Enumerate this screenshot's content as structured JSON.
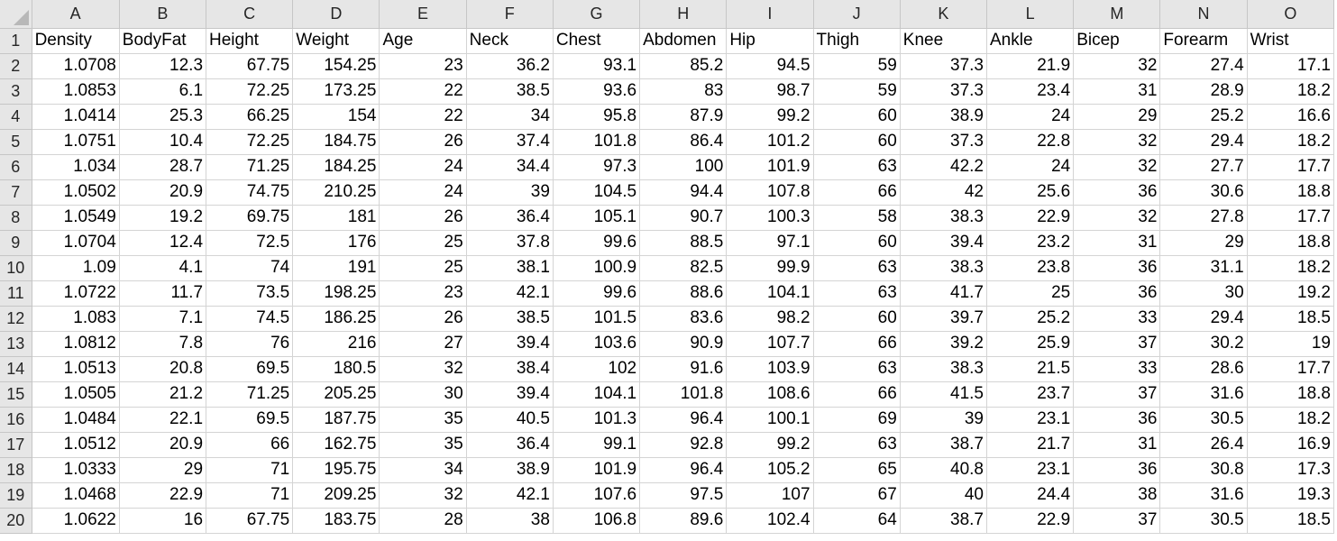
{
  "spreadsheet": {
    "columns": [
      "A",
      "B",
      "C",
      "D",
      "E",
      "F",
      "G",
      "H",
      "I",
      "J",
      "K",
      "L",
      "M",
      "N",
      "O"
    ],
    "headers": [
      "Density",
      "BodyFat",
      "Height",
      "Weight",
      "Age",
      "Neck",
      "Chest",
      "Abdomen",
      "Hip",
      "Thigh",
      "Knee",
      "Ankle",
      "Bicep",
      "Forearm",
      "Wrist"
    ],
    "rows": [
      {
        "n": "2",
        "cells": [
          "1.0708",
          "12.3",
          "67.75",
          "154.25",
          "23",
          "36.2",
          "93.1",
          "85.2",
          "94.5",
          "59",
          "37.3",
          "21.9",
          "32",
          "27.4",
          "17.1"
        ]
      },
      {
        "n": "3",
        "cells": [
          "1.0853",
          "6.1",
          "72.25",
          "173.25",
          "22",
          "38.5",
          "93.6",
          "83",
          "98.7",
          "59",
          "37.3",
          "23.4",
          "31",
          "28.9",
          "18.2"
        ]
      },
      {
        "n": "4",
        "cells": [
          "1.0414",
          "25.3",
          "66.25",
          "154",
          "22",
          "34",
          "95.8",
          "87.9",
          "99.2",
          "60",
          "38.9",
          "24",
          "29",
          "25.2",
          "16.6"
        ]
      },
      {
        "n": "5",
        "cells": [
          "1.0751",
          "10.4",
          "72.25",
          "184.75",
          "26",
          "37.4",
          "101.8",
          "86.4",
          "101.2",
          "60",
          "37.3",
          "22.8",
          "32",
          "29.4",
          "18.2"
        ]
      },
      {
        "n": "6",
        "cells": [
          "1.034",
          "28.7",
          "71.25",
          "184.25",
          "24",
          "34.4",
          "97.3",
          "100",
          "101.9",
          "63",
          "42.2",
          "24",
          "32",
          "27.7",
          "17.7"
        ]
      },
      {
        "n": "7",
        "cells": [
          "1.0502",
          "20.9",
          "74.75",
          "210.25",
          "24",
          "39",
          "104.5",
          "94.4",
          "107.8",
          "66",
          "42",
          "25.6",
          "36",
          "30.6",
          "18.8"
        ]
      },
      {
        "n": "8",
        "cells": [
          "1.0549",
          "19.2",
          "69.75",
          "181",
          "26",
          "36.4",
          "105.1",
          "90.7",
          "100.3",
          "58",
          "38.3",
          "22.9",
          "32",
          "27.8",
          "17.7"
        ]
      },
      {
        "n": "9",
        "cells": [
          "1.0704",
          "12.4",
          "72.5",
          "176",
          "25",
          "37.8",
          "99.6",
          "88.5",
          "97.1",
          "60",
          "39.4",
          "23.2",
          "31",
          "29",
          "18.8"
        ]
      },
      {
        "n": "10",
        "cells": [
          "1.09",
          "4.1",
          "74",
          "191",
          "25",
          "38.1",
          "100.9",
          "82.5",
          "99.9",
          "63",
          "38.3",
          "23.8",
          "36",
          "31.1",
          "18.2"
        ]
      },
      {
        "n": "11",
        "cells": [
          "1.0722",
          "11.7",
          "73.5",
          "198.25",
          "23",
          "42.1",
          "99.6",
          "88.6",
          "104.1",
          "63",
          "41.7",
          "25",
          "36",
          "30",
          "19.2"
        ]
      },
      {
        "n": "12",
        "cells": [
          "1.083",
          "7.1",
          "74.5",
          "186.25",
          "26",
          "38.5",
          "101.5",
          "83.6",
          "98.2",
          "60",
          "39.7",
          "25.2",
          "33",
          "29.4",
          "18.5"
        ]
      },
      {
        "n": "13",
        "cells": [
          "1.0812",
          "7.8",
          "76",
          "216",
          "27",
          "39.4",
          "103.6",
          "90.9",
          "107.7",
          "66",
          "39.2",
          "25.9",
          "37",
          "30.2",
          "19"
        ]
      },
      {
        "n": "14",
        "cells": [
          "1.0513",
          "20.8",
          "69.5",
          "180.5",
          "32",
          "38.4",
          "102",
          "91.6",
          "103.9",
          "63",
          "38.3",
          "21.5",
          "33",
          "28.6",
          "17.7"
        ]
      },
      {
        "n": "15",
        "cells": [
          "1.0505",
          "21.2",
          "71.25",
          "205.25",
          "30",
          "39.4",
          "104.1",
          "101.8",
          "108.6",
          "66",
          "41.5",
          "23.7",
          "37",
          "31.6",
          "18.8"
        ]
      },
      {
        "n": "16",
        "cells": [
          "1.0484",
          "22.1",
          "69.5",
          "187.75",
          "35",
          "40.5",
          "101.3",
          "96.4",
          "100.1",
          "69",
          "39",
          "23.1",
          "36",
          "30.5",
          "18.2"
        ]
      },
      {
        "n": "17",
        "cells": [
          "1.0512",
          "20.9",
          "66",
          "162.75",
          "35",
          "36.4",
          "99.1",
          "92.8",
          "99.2",
          "63",
          "38.7",
          "21.7",
          "31",
          "26.4",
          "16.9"
        ]
      },
      {
        "n": "18",
        "cells": [
          "1.0333",
          "29",
          "71",
          "195.75",
          "34",
          "38.9",
          "101.9",
          "96.4",
          "105.2",
          "65",
          "40.8",
          "23.1",
          "36",
          "30.8",
          "17.3"
        ]
      },
      {
        "n": "19",
        "cells": [
          "1.0468",
          "22.9",
          "71",
          "209.25",
          "32",
          "42.1",
          "107.6",
          "97.5",
          "107",
          "67",
          "40",
          "24.4",
          "38",
          "31.6",
          "19.3"
        ]
      },
      {
        "n": "20",
        "cells": [
          "1.0622",
          "16",
          "67.75",
          "183.75",
          "28",
          "38",
          "106.8",
          "89.6",
          "102.4",
          "64",
          "38.7",
          "22.9",
          "37",
          "30.5",
          "18.5"
        ]
      }
    ]
  }
}
